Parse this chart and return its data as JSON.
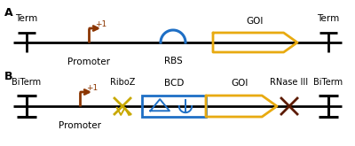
{
  "bg_color": "#ffffff",
  "line_color": "#000000",
  "promoter_color": "#8B3500",
  "rbs_color": "#1e6fc5",
  "goi_color": "#e8aa10",
  "bcd_color": "#1e6fc5",
  "riboz_color": "#c8a800",
  "rnase_color": "#5c1a00",
  "panel_A_label": "A",
  "panel_B_label": "B",
  "term_label": "Term",
  "biterm_label": "BiTerm",
  "promoter_label": "Promoter",
  "rbs_label": "RBS",
  "goi_label_A": "GOI",
  "goi_label_B": "GOI",
  "bcd_label": "BCD",
  "riboz_label": "RiboZ",
  "rnase_label": "RNase III",
  "plus1_label": "+1"
}
